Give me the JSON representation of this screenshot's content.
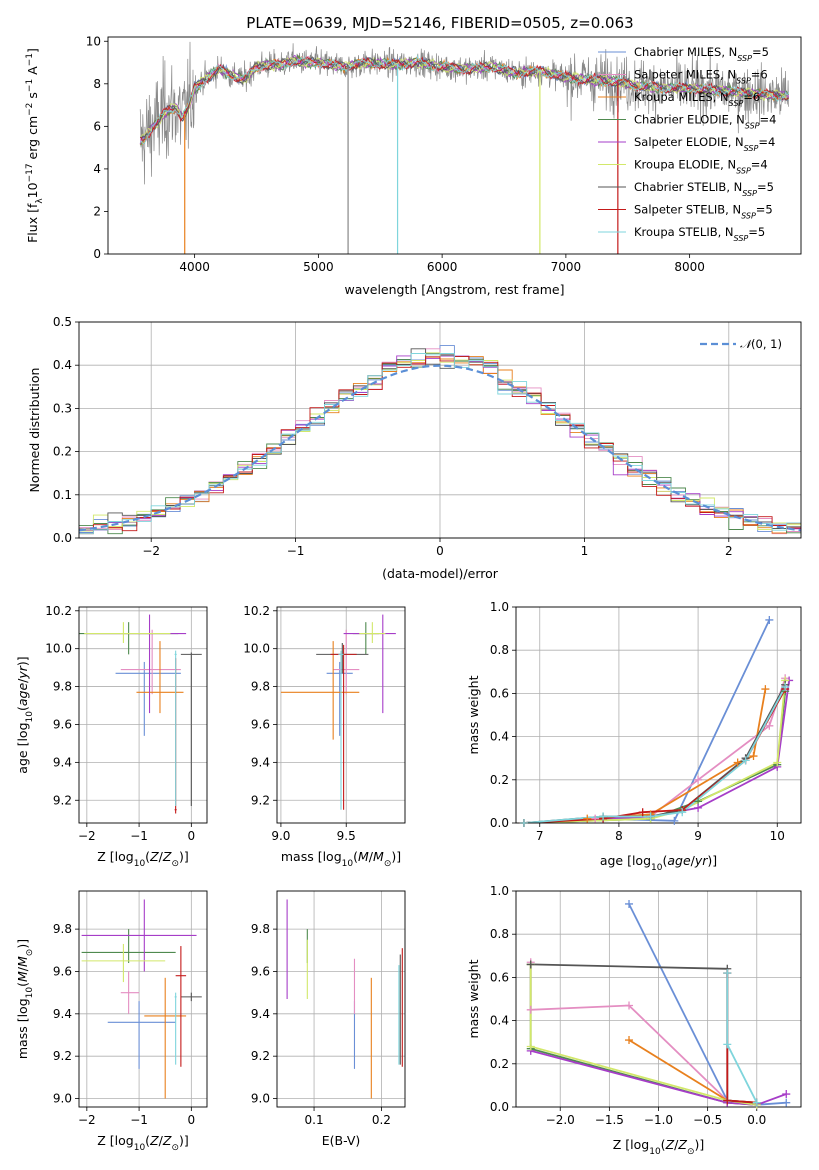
{
  "title": "PLATE=0639, MJD=52146, FIBERID=0505, z=0.063",
  "colors": {
    "chabrier_miles": "#6a8fd6",
    "salpeter_miles": "#e48ec2",
    "kroupa_miles": "#e8801e",
    "chabrier_elodie": "#4f8a4f",
    "salpeter_elodie": "#a63dc8",
    "kroupa_elodie": "#d2e86a",
    "chabrier_stelib": "#555555",
    "salpeter_stelib": "#c41a1a",
    "kroupa_stelib": "#7fd5dc",
    "data": "#888888",
    "gauss": "#5b8fd6",
    "grid": "#b0b0b0"
  },
  "chart_data": [
    {
      "id": "spectrum",
      "type": "line",
      "xlabel": "wavelength [Angstrom, rest frame]",
      "ylabel": "Flux [f$_\\lambda$10$^{-17}$ erg cm$^{-2}$ s$^{-1}$ A$^{-1}$]",
      "xlim": [
        3300,
        8900
      ],
      "ylim": [
        0,
        10.2
      ],
      "xticks": [
        "4000",
        "5000",
        "6000",
        "7000",
        "8000"
      ],
      "yticks": [
        "0",
        "2",
        "4",
        "6",
        "8",
        "10"
      ],
      "legend_position": "right",
      "legend": [
        {
          "pre": "Chabrier MILES, N",
          "sub": "SSP",
          "post": "=5"
        },
        {
          "pre": "Salpeter MILES, N",
          "sub": "SSP",
          "post": "=6"
        },
        {
          "pre": "Kroupa MILES, N",
          "sub": "SSP",
          "post": "=6"
        },
        {
          "pre": "Chabrier ELODIE, N",
          "sub": "SSP",
          "post": "=4"
        },
        {
          "pre": "Salpeter ELODIE, N",
          "sub": "SSP",
          "post": "=4"
        },
        {
          "pre": "Kroupa ELODIE, N",
          "sub": "SSP",
          "post": "=4"
        },
        {
          "pre": "Chabrier STELIB, N",
          "sub": "SSP",
          "post": "=5"
        },
        {
          "pre": "Salpeter STELIB, N",
          "sub": "SSP",
          "post": "=5"
        },
        {
          "pre": "Kroupa STELIB, N",
          "sub": "SSP",
          "post": "=5"
        }
      ],
      "continuum": {
        "x": [
          3560,
          3600,
          3650,
          3700,
          3750,
          3800,
          3850,
          3900,
          3950,
          4000,
          4100,
          4200,
          4300,
          4400,
          4500,
          4600,
          4700,
          4800,
          4900,
          5000,
          5200,
          5400,
          5600,
          5800,
          6000,
          6200,
          6400,
          6600,
          6800,
          7000,
          7200,
          7400,
          7600,
          7800,
          8000,
          8200,
          8400,
          8600,
          8800
        ],
        "y": [
          5.3,
          5.5,
          5.9,
          6.2,
          6.6,
          6.8,
          6.9,
          6.4,
          6.9,
          7.8,
          8.3,
          8.7,
          8.4,
          8.2,
          8.8,
          8.9,
          8.9,
          9.1,
          9.0,
          9.0,
          8.8,
          9.0,
          8.9,
          9.0,
          8.8,
          8.7,
          8.8,
          8.5,
          8.6,
          8.3,
          8.2,
          8.1,
          7.9,
          7.8,
          7.8,
          7.7,
          7.6,
          7.5,
          7.4
        ]
      },
      "masked_spikes": [
        3920,
        5240,
        5640,
        6790,
        7420
      ]
    },
    {
      "id": "residuals",
      "type": "histogram",
      "xlabel": "(data-model)/error",
      "ylabel": "Normed distribution",
      "xlim": [
        -2.5,
        2.5
      ],
      "ylim": [
        0,
        0.5
      ],
      "xticks": [
        "−2",
        "−1",
        "0",
        "1",
        "2"
      ],
      "yticks": [
        "0.0",
        "0.1",
        "0.2",
        "0.3",
        "0.4",
        "0.5"
      ],
      "legend": "$\\mathcal{N}(0,1)$",
      "legend_position": "top-right",
      "bin_width": 0.1
    },
    {
      "id": "age_vs_Z",
      "type": "scatter",
      "xlabel": "Z [log$_{10}$($Z/Z_\\odot$)]",
      "ylabel": "age  [log$_{10}$($age/yr$)]",
      "xlim": [
        -2.15,
        0.3
      ],
      "ylim": [
        9.08,
        10.22
      ],
      "xticks": [
        "−2",
        "−1",
        "0"
      ],
      "yticks": [
        "9.2",
        "9.4",
        "9.6",
        "9.8",
        "10.0",
        "10.2"
      ],
      "points": [
        {
          "m": "chabrier_miles",
          "x": -0.9,
          "xerr": [
            0.55,
            0.7
          ],
          "y": 9.87,
          "yerr": [
            0.33,
            0.06
          ]
        },
        {
          "m": "salpeter_miles",
          "x": -0.75,
          "xerr": [
            0.6,
            0.55
          ],
          "y": 9.89,
          "yerr": [
            0.13,
            0.21
          ]
        },
        {
          "m": "kroupa_miles",
          "x": -0.6,
          "xerr": [
            0.45,
            0.45
          ],
          "y": 9.77,
          "yerr": [
            0.11,
            0.27
          ]
        },
        {
          "m": "chabrier_elodie",
          "x": -1.2,
          "xerr": [
            0.95,
            0.95
          ],
          "y": 10.08,
          "yerr": [
            0.11,
            0.06
          ]
        },
        {
          "m": "salpeter_elodie",
          "x": -0.8,
          "xerr": [
            1.2,
            0.7
          ],
          "y": 10.08,
          "yerr": [
            0.42,
            0.1
          ]
        },
        {
          "m": "kroupa_elodie",
          "x": -1.3,
          "xerr": [
            0.75,
            0.9
          ],
          "y": 10.08,
          "yerr": [
            0.05,
            0.06
          ]
        },
        {
          "m": "chabrier_stelib",
          "x": 0.0,
          "xerr": [
            0.2,
            0.2
          ],
          "y": 9.97,
          "yerr": [
            0.8,
            0.01
          ]
        },
        {
          "m": "salpeter_stelib",
          "x": -0.3,
          "xerr": [
            0.02,
            0.02
          ],
          "y": 9.15,
          "yerr": [
            0.02,
            0.8
          ]
        },
        {
          "m": "kroupa_stelib",
          "x": -0.3,
          "xerr": [
            0.02,
            0.02
          ],
          "y": 9.97,
          "yerr": [
            0.8,
            0.02
          ]
        }
      ]
    },
    {
      "id": "age_vs_mass",
      "type": "scatter",
      "xlabel": "mass [log$_{10}$($M/M_\\odot$)]",
      "ylabel": "",
      "xlim": [
        8.97,
        9.95
      ],
      "ylim": [
        9.08,
        10.22
      ],
      "xticks": [
        "9.0",
        "9.5"
      ],
      "yticks": [
        "9.2",
        "9.4",
        "9.6",
        "9.8",
        "10.0",
        "10.2"
      ],
      "points": [
        {
          "m": "chabrier_miles",
          "x": 9.45,
          "xerr": [
            0.1,
            0.1
          ],
          "y": 9.87,
          "yerr": [
            0.33,
            0.06
          ]
        },
        {
          "m": "salpeter_miles",
          "x": 9.5,
          "xerr": [
            0.1,
            0.1
          ],
          "y": 9.89,
          "yerr": [
            0.13,
            0.21
          ]
        },
        {
          "m": "kroupa_miles",
          "x": 9.4,
          "xerr": [
            0.4,
            0.2
          ],
          "y": 9.77,
          "yerr": [
            0.25,
            0.27
          ]
        },
        {
          "m": "chabrier_elodie",
          "x": 9.65,
          "xerr": [
            0.1,
            0.1
          ],
          "y": 10.08,
          "yerr": [
            0.11,
            0.06
          ]
        },
        {
          "m": "salpeter_elodie",
          "x": 9.78,
          "xerr": [
            0.3,
            0.1
          ],
          "y": 10.08,
          "yerr": [
            0.42,
            0.1
          ]
        },
        {
          "m": "kroupa_elodie",
          "x": 9.7,
          "xerr": [
            0.1,
            0.1
          ],
          "y": 10.08,
          "yerr": [
            0.05,
            0.06
          ]
        },
        {
          "m": "chabrier_stelib",
          "x": 9.47,
          "xerr": [
            0.2,
            0.2
          ],
          "y": 9.97,
          "yerr": [
            0.1,
            0.06
          ]
        },
        {
          "m": "salpeter_stelib",
          "x": 9.48,
          "xerr": [
            0.1,
            0.1
          ],
          "y": 9.97,
          "yerr": [
            0.82,
            0.05
          ]
        },
        {
          "m": "kroupa_stelib",
          "x": 9.46,
          "xerr": [
            0.02,
            0.02
          ],
          "y": 9.97,
          "yerr": [
            0.82,
            0.02
          ]
        }
      ]
    },
    {
      "id": "weight_vs_age",
      "type": "line",
      "xlabel": "age  [log$_{10}$($age/yr$)]",
      "ylabel": "mass weight",
      "xlim": [
        6.7,
        10.3
      ],
      "ylim": [
        0,
        1
      ],
      "xticks": [
        "7",
        "8",
        "9",
        "10"
      ],
      "yticks": [
        "0.0",
        "0.2",
        "0.4",
        "0.6",
        "0.8",
        "1.0"
      ],
      "series": [
        {
          "m": "chabrier_miles",
          "x": [
            6.8,
            7.8,
            8.7,
            9.9
          ],
          "y": [
            0.0,
            0.02,
            0.01,
            0.94
          ]
        },
        {
          "m": "salpeter_miles",
          "x": [
            6.8,
            7.7,
            8.4,
            9.0,
            9.9,
            10.1
          ],
          "y": [
            0.0,
            0.02,
            0.03,
            0.2,
            0.45,
            0.67
          ]
        },
        {
          "m": "kroupa_miles",
          "x": [
            6.8,
            7.6,
            8.4,
            9.5,
            9.7,
            9.85
          ],
          "y": [
            0.0,
            0.02,
            0.04,
            0.28,
            0.31,
            0.62
          ]
        },
        {
          "m": "chabrier_elodie",
          "x": [
            6.8,
            8.4,
            9.0,
            10.0,
            10.1
          ],
          "y": [
            0.0,
            0.02,
            0.1,
            0.27,
            0.61
          ]
        },
        {
          "m": "salpeter_elodie",
          "x": [
            6.8,
            8.4,
            9.0,
            10.0,
            10.15
          ],
          "y": [
            0.0,
            0.03,
            0.07,
            0.26,
            0.66
          ]
        },
        {
          "m": "kroupa_elodie",
          "x": [
            6.8,
            8.4,
            8.8,
            10.0,
            10.1
          ],
          "y": [
            0.0,
            0.02,
            0.06,
            0.28,
            0.66
          ]
        },
        {
          "m": "chabrier_stelib",
          "x": [
            6.8,
            7.8,
            8.4,
            8.8,
            9.6,
            10.1
          ],
          "y": [
            0.0,
            0.03,
            0.03,
            0.06,
            0.3,
            0.64
          ]
        },
        {
          "m": "salpeter_stelib",
          "x": [
            6.8,
            7.8,
            8.3,
            8.8,
            9.6,
            10.1
          ],
          "y": [
            0.0,
            0.02,
            0.05,
            0.06,
            0.29,
            0.62
          ]
        },
        {
          "m": "kroupa_stelib",
          "x": [
            6.8,
            7.8,
            8.4,
            8.8,
            9.6,
            10.1
          ],
          "y": [
            0.0,
            0.03,
            0.03,
            0.05,
            0.29,
            0.63
          ]
        }
      ]
    },
    {
      "id": "mass_vs_Z",
      "type": "scatter",
      "xlabel": "Z [log$_{10}$($Z/Z_\\odot$)]",
      "ylabel": "mass [log$_{10}$($M/M_\\odot$)]",
      "xlim": [
        -2.15,
        0.3
      ],
      "ylim": [
        8.96,
        9.98
      ],
      "xticks": [
        "−2",
        "−1",
        "0"
      ],
      "yticks": [
        "9.0",
        "9.2",
        "9.4",
        "9.6",
        "9.8"
      ],
      "points": [
        {
          "m": "chabrier_miles",
          "x": -1.0,
          "xerr": [
            0.6,
            0.7
          ],
          "y": 9.36,
          "yerr": [
            0.22,
            0.1
          ]
        },
        {
          "m": "salpeter_miles",
          "x": -1.2,
          "xerr": [
            0.15,
            0.2
          ],
          "y": 9.5,
          "yerr": [
            0.1,
            0.1
          ]
        },
        {
          "m": "kroupa_miles",
          "x": -0.5,
          "xerr": [
            0.4,
            0.4
          ],
          "y": 9.39,
          "yerr": [
            0.39,
            0.18
          ]
        },
        {
          "m": "chabrier_elodie",
          "x": -1.2,
          "xerr": [
            0.9,
            0.9
          ],
          "y": 9.69,
          "yerr": [
            0.05,
            0.11
          ]
        },
        {
          "m": "salpeter_elodie",
          "x": -0.9,
          "xerr": [
            1.2,
            1.0
          ],
          "y": 9.77,
          "yerr": [
            0.17,
            0.17
          ]
        },
        {
          "m": "kroupa_elodie",
          "x": -1.3,
          "xerr": [
            0.8,
            0.8
          ],
          "y": 9.65,
          "yerr": [
            0.1,
            0.08
          ]
        },
        {
          "m": "chabrier_stelib",
          "x": 0.0,
          "xerr": [
            0.2,
            0.2
          ],
          "y": 9.48,
          "yerr": [
            0.02,
            0.02
          ]
        },
        {
          "m": "salpeter_stelib",
          "x": -0.2,
          "xerr": [
            0.1,
            0.1
          ],
          "y": 9.58,
          "yerr": [
            0.43,
            0.14
          ]
        },
        {
          "m": "kroupa_stelib",
          "x": -0.3,
          "xerr": [
            0.02,
            0.02
          ],
          "y": 9.48,
          "yerr": [
            0.32,
            0.02
          ]
        }
      ]
    },
    {
      "id": "mass_vs_ebv",
      "type": "scatter",
      "xlabel": "E(B-V)",
      "ylabel": "",
      "xlim": [
        0.045,
        0.235
      ],
      "ylim": [
        8.96,
        9.98
      ],
      "xticks": [
        "0.1",
        "0.2"
      ],
      "yticks": [
        "9.0",
        "9.2",
        "9.4",
        "9.6",
        "9.8"
      ],
      "points": [
        {
          "m": "chabrier_miles",
          "x": 0.16,
          "xerr": [
            0,
            0
          ],
          "y": 9.36,
          "yerr": [
            0.22,
            0.1
          ]
        },
        {
          "m": "salpeter_miles",
          "x": 0.16,
          "xerr": [
            0,
            0
          ],
          "y": 9.5,
          "yerr": [
            0.1,
            0.16
          ]
        },
        {
          "m": "kroupa_miles",
          "x": 0.185,
          "xerr": [
            0,
            0
          ],
          "y": 9.39,
          "yerr": [
            0.39,
            0.18
          ]
        },
        {
          "m": "chabrier_elodie",
          "x": 0.09,
          "xerr": [
            0,
            0
          ],
          "y": 9.69,
          "yerr": [
            0.05,
            0.11
          ]
        },
        {
          "m": "salpeter_elodie",
          "x": 0.06,
          "xerr": [
            0,
            0
          ],
          "y": 9.77,
          "yerr": [
            0.3,
            0.17
          ]
        },
        {
          "m": "kroupa_elodie",
          "x": 0.09,
          "xerr": [
            0,
            0
          ],
          "y": 9.65,
          "yerr": [
            0.18,
            0.1
          ]
        },
        {
          "m": "chabrier_stelib",
          "x": 0.228,
          "xerr": [
            0,
            0
          ],
          "y": 9.48,
          "yerr": [
            0.32,
            0.2
          ]
        },
        {
          "m": "salpeter_stelib",
          "x": 0.231,
          "xerr": [
            0,
            0
          ],
          "y": 9.58,
          "yerr": [
            0.43,
            0.13
          ]
        },
        {
          "m": "kroupa_stelib",
          "x": 0.226,
          "xerr": [
            0,
            0
          ],
          "y": 9.48,
          "yerr": [
            0.32,
            0.15
          ]
        }
      ]
    },
    {
      "id": "weight_vs_Z",
      "type": "line",
      "xlabel": "Z [log$_{10}$($Z/Z_\\odot$)]",
      "ylabel": "mass weight",
      "xlim": [
        -2.45,
        0.45
      ],
      "ylim": [
        0,
        1
      ],
      "xticks": [
        "−2.0",
        "−1.5",
        "−1.0",
        "−0.5",
        "0.0"
      ],
      "yticks": [
        "0.0",
        "0.2",
        "0.4",
        "0.6",
        "0.8",
        "1.0"
      ],
      "series": [
        {
          "m": "chabrier_miles",
          "x": [
            -1.3,
            -0.3,
            0.0,
            0.3
          ],
          "y": [
            0.94,
            0.03,
            0.01,
            0.02
          ]
        },
        {
          "m": "salpeter_miles",
          "x": [
            -2.3,
            -2.3,
            -1.3,
            -0.3,
            0.0
          ],
          "y": [
            0.67,
            0.45,
            0.47,
            0.03,
            0.02
          ]
        },
        {
          "m": "kroupa_miles",
          "x": [
            -1.3,
            -0.3,
            0.0
          ],
          "y": [
            0.31,
            0.03,
            0.02
          ]
        },
        {
          "m": "chabrier_elodie",
          "x": [
            -2.3,
            -2.3,
            -0.3,
            0.0
          ],
          "y": [
            0.66,
            0.27,
            0.02,
            0.01
          ]
        },
        {
          "m": "salpeter_elodie",
          "x": [
            -2.3,
            -0.3,
            0.0,
            0.3
          ],
          "y": [
            0.26,
            0.02,
            0.01,
            0.06
          ]
        },
        {
          "m": "kroupa_elodie",
          "x": [
            -2.3,
            -2.3,
            -0.3,
            0.0
          ],
          "y": [
            0.66,
            0.28,
            0.03,
            0.01
          ]
        },
        {
          "m": "chabrier_stelib",
          "x": [
            -2.3,
            -0.3,
            -0.3,
            0.0
          ],
          "y": [
            0.66,
            0.64,
            0.03,
            0.02
          ]
        },
        {
          "m": "salpeter_stelib",
          "x": [
            -0.3,
            -0.3,
            0.0
          ],
          "y": [
            0.62,
            0.03,
            0.02
          ]
        },
        {
          "m": "kroupa_stelib",
          "x": [
            -0.3,
            -0.3,
            0.0
          ],
          "y": [
            0.62,
            0.29,
            0.02
          ]
        }
      ]
    }
  ]
}
